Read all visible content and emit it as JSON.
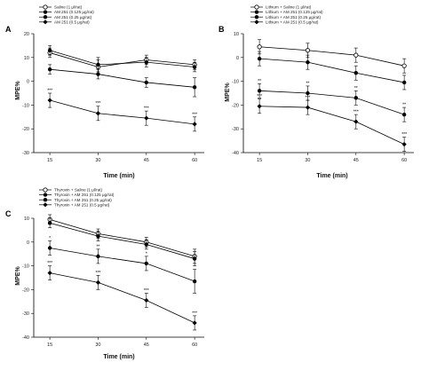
{
  "chart_data": [
    {
      "type": "line",
      "panel_label": "A",
      "x": [
        15,
        30,
        45,
        60
      ],
      "x_ticks": [
        "15",
        "30",
        "45",
        "60"
      ],
      "xlabel": "Time (min)",
      "ylabel": "MPE%",
      "ylim": [
        -30,
        20
      ],
      "y_ticks": [
        -30,
        -20,
        -10,
        0,
        10,
        20
      ],
      "legend": "top-left",
      "series": [
        {
          "name": "Saline (1 µl/rat)",
          "marker": "open-circle",
          "values": [
            12,
            6,
            9,
            7
          ],
          "err": [
            2,
            3,
            2,
            2
          ],
          "sig": [
            "",
            "",
            "",
            ""
          ]
        },
        {
          "name": "AM 251 (0.125 µg/rat)",
          "marker": "filled-circle",
          "values": [
            13,
            7,
            8,
            6
          ],
          "err": [
            2,
            3,
            2,
            2
          ],
          "sig": [
            "",
            "",
            "",
            ""
          ]
        },
        {
          "name": "AM 251 (0.25 µg/rat)",
          "marker": "filled-circle",
          "values": [
            5,
            3,
            -0.5,
            -2.5
          ],
          "err": [
            2,
            2,
            2,
            4
          ],
          "sig": [
            "",
            "",
            "",
            ""
          ]
        },
        {
          "name": "AM 251 (0.5 µg/rat)",
          "marker": "filled-diamond",
          "values": [
            -8,
            -13.5,
            -15.5,
            -18
          ],
          "err": [
            3,
            3,
            3,
            3
          ],
          "sig": [
            "***",
            "***",
            "***",
            "***"
          ]
        }
      ]
    },
    {
      "type": "line",
      "panel_label": "B",
      "x": [
        15,
        30,
        45,
        60
      ],
      "x_ticks": [
        "15",
        "30",
        "45",
        "60"
      ],
      "xlabel": "Time (min)",
      "ylabel": "MPE%",
      "ylim": [
        -40,
        10
      ],
      "y_ticks": [
        -40,
        -30,
        -20,
        -10,
        0,
        10
      ],
      "legend": "top-left",
      "series": [
        {
          "name": "Lithium + Saline (1 µl/rat)",
          "marker": "open-circle",
          "values": [
            4.5,
            3,
            1,
            -3.5
          ],
          "err": [
            3,
            3,
            3,
            3
          ],
          "sig": [
            "",
            "",
            "",
            ""
          ]
        },
        {
          "name": "Lithium + AM 251 (0.125 µg/rat)",
          "marker": "filled-circle",
          "values": [
            -0.5,
            -2,
            -6.5,
            -10.5
          ],
          "err": [
            3,
            3,
            3,
            3
          ],
          "sig": [
            "",
            "",
            "",
            ""
          ]
        },
        {
          "name": "Lithium + AM 251 (0.25 µg/rat)",
          "marker": "filled-circle",
          "values": [
            -14,
            -15,
            -17,
            -24
          ],
          "err": [
            3,
            3,
            3,
            3
          ],
          "sig": [
            "**",
            "**",
            "**",
            "**"
          ]
        },
        {
          "name": "Lithium + AM 251 (0.5 µg/rat)",
          "marker": "filled-diamond",
          "values": [
            -20.5,
            -21,
            -27,
            -36.5
          ],
          "err": [
            3,
            3,
            3,
            3
          ],
          "sig": [
            "***",
            "***",
            "***",
            "***"
          ]
        }
      ]
    },
    {
      "type": "line",
      "panel_label": "C",
      "x": [
        15,
        30,
        45,
        60
      ],
      "x_ticks": [
        "15",
        "30",
        "45",
        "60"
      ],
      "xlabel": "Time (min)",
      "ylabel": "MPE%",
      "ylim": [
        -40,
        10
      ],
      "y_ticks": [
        -40,
        -30,
        -20,
        -10,
        0,
        10
      ],
      "legend": "top-left",
      "series": [
        {
          "name": "Thyroxin + Saline (1 µl/rat)",
          "marker": "open-circle",
          "values": [
            9.5,
            3.5,
            0,
            -6
          ],
          "err": [
            2,
            2,
            2,
            3
          ],
          "sig": [
            "",
            "",
            "",
            ""
          ]
        },
        {
          "name": "Thyroxin + AM 251 (0.125 µg/rat)",
          "marker": "filled-circle",
          "values": [
            8,
            2.5,
            -1,
            -7
          ],
          "err": [
            2,
            2,
            2,
            3
          ],
          "sig": [
            "",
            "",
            "",
            ""
          ]
        },
        {
          "name": "Thyroxin + AM 251 (0.25 µg/rat)",
          "marker": "filled-circle",
          "values": [
            -2.5,
            -6,
            -9,
            -16.5
          ],
          "err": [
            3,
            3,
            3,
            5
          ],
          "sig": [
            "*",
            "**",
            "*",
            ""
          ]
        },
        {
          "name": "Thyroxin + AM 251 (0.5 µg/rat)",
          "marker": "filled-diamond",
          "values": [
            -13,
            -17,
            -24.5,
            -34
          ],
          "err": [
            3,
            3,
            3,
            3
          ],
          "sig": [
            "***",
            "***",
            "***",
            "***"
          ]
        }
      ]
    }
  ]
}
